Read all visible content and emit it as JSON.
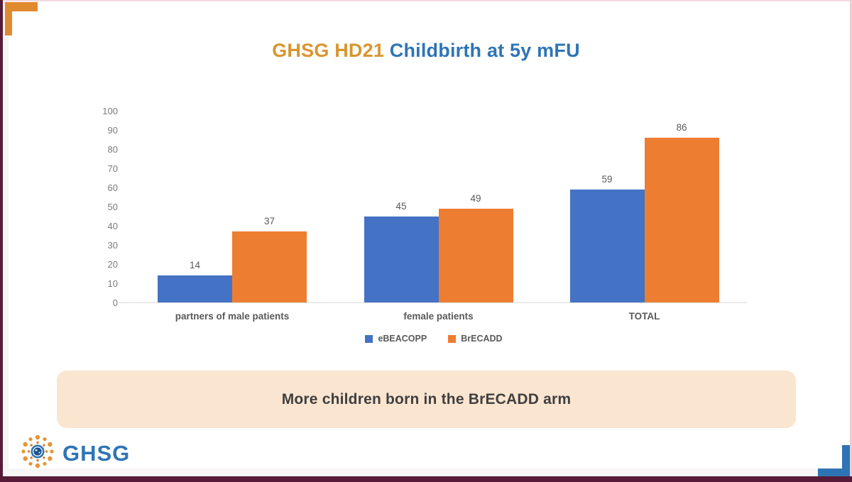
{
  "title": {
    "part1": "GHSG HD21",
    "part2": " Childbirth at 5y mFU",
    "part1_color": "#d9952f",
    "part2_color": "#2e75b6"
  },
  "chart_data": {
    "type": "bar",
    "title": "GHSG HD21 Childbirth at 5y mFU",
    "categories": [
      "partners of male patients",
      "female patients",
      "TOTAL"
    ],
    "series": [
      {
        "name": "eBEACOPP",
        "color": "#4472c4",
        "values": [
          14,
          45,
          59
        ]
      },
      {
        "name": "BrECADD",
        "color": "#ed7d31",
        "values": [
          37,
          49,
          86
        ]
      }
    ],
    "ylim": [
      0,
      100
    ],
    "yticks": [
      0,
      10,
      20,
      30,
      40,
      50,
      60,
      70,
      80,
      90,
      100
    ],
    "xlabel": "",
    "ylabel": "",
    "grid": false,
    "data_labels": true,
    "legend_position": "bottom"
  },
  "banner": {
    "text": "More children born in the BrECADD arm",
    "bg": "#fae5d1"
  },
  "logo": {
    "text": "GHSG"
  },
  "colors": {
    "edge_maroon": "#571b38",
    "bracket_orange": "#e08a30",
    "bracket_blue": "#2e73b4",
    "axis_line": "#d9d9d9",
    "tick_text": "#7b7b7b",
    "label_text": "#595959",
    "banner_text": "#3f3f3f",
    "logo_blue": "#2e75b6",
    "logo_orange": "#e69536"
  }
}
